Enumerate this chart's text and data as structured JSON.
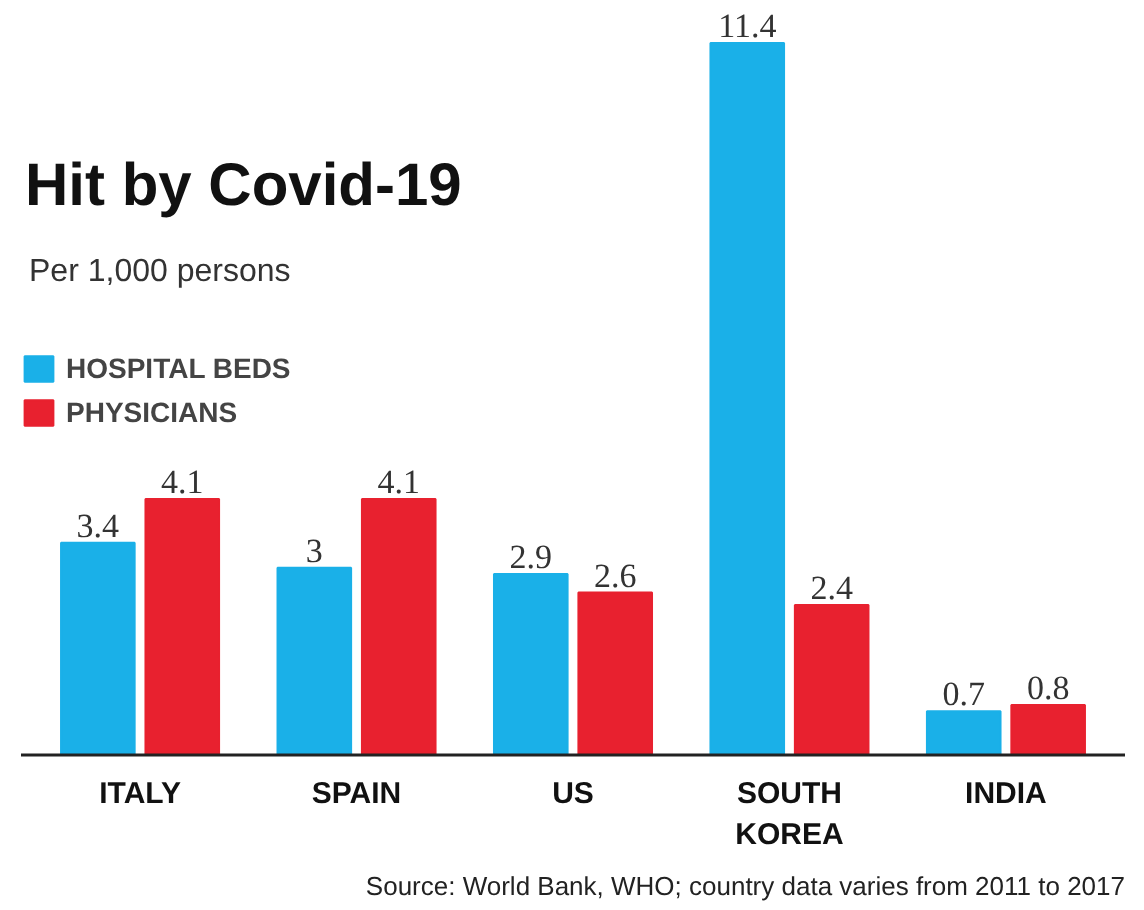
{
  "chart_data": {
    "type": "bar",
    "title": "Hit by Covid-19",
    "subtitle": "Per 1,000 persons",
    "categories": [
      "ITALY",
      "SPAIN",
      "US",
      "SOUTH KOREA",
      "INDIA"
    ],
    "series": [
      {
        "name": "HOSPITAL BEDS",
        "color": "#1ab0e8",
        "values": [
          3.4,
          3,
          2.9,
          11.4,
          0.7
        ]
      },
      {
        "name": "PHYSICIANS",
        "color": "#e8212f",
        "values": [
          4.1,
          4.1,
          2.6,
          2.4,
          0.8
        ]
      }
    ],
    "data_labels": true,
    "legend": "top left",
    "grid": false,
    "annotations": [
      "Source: World Bank, WHO; country data varies from 2011 to 2017"
    ]
  }
}
